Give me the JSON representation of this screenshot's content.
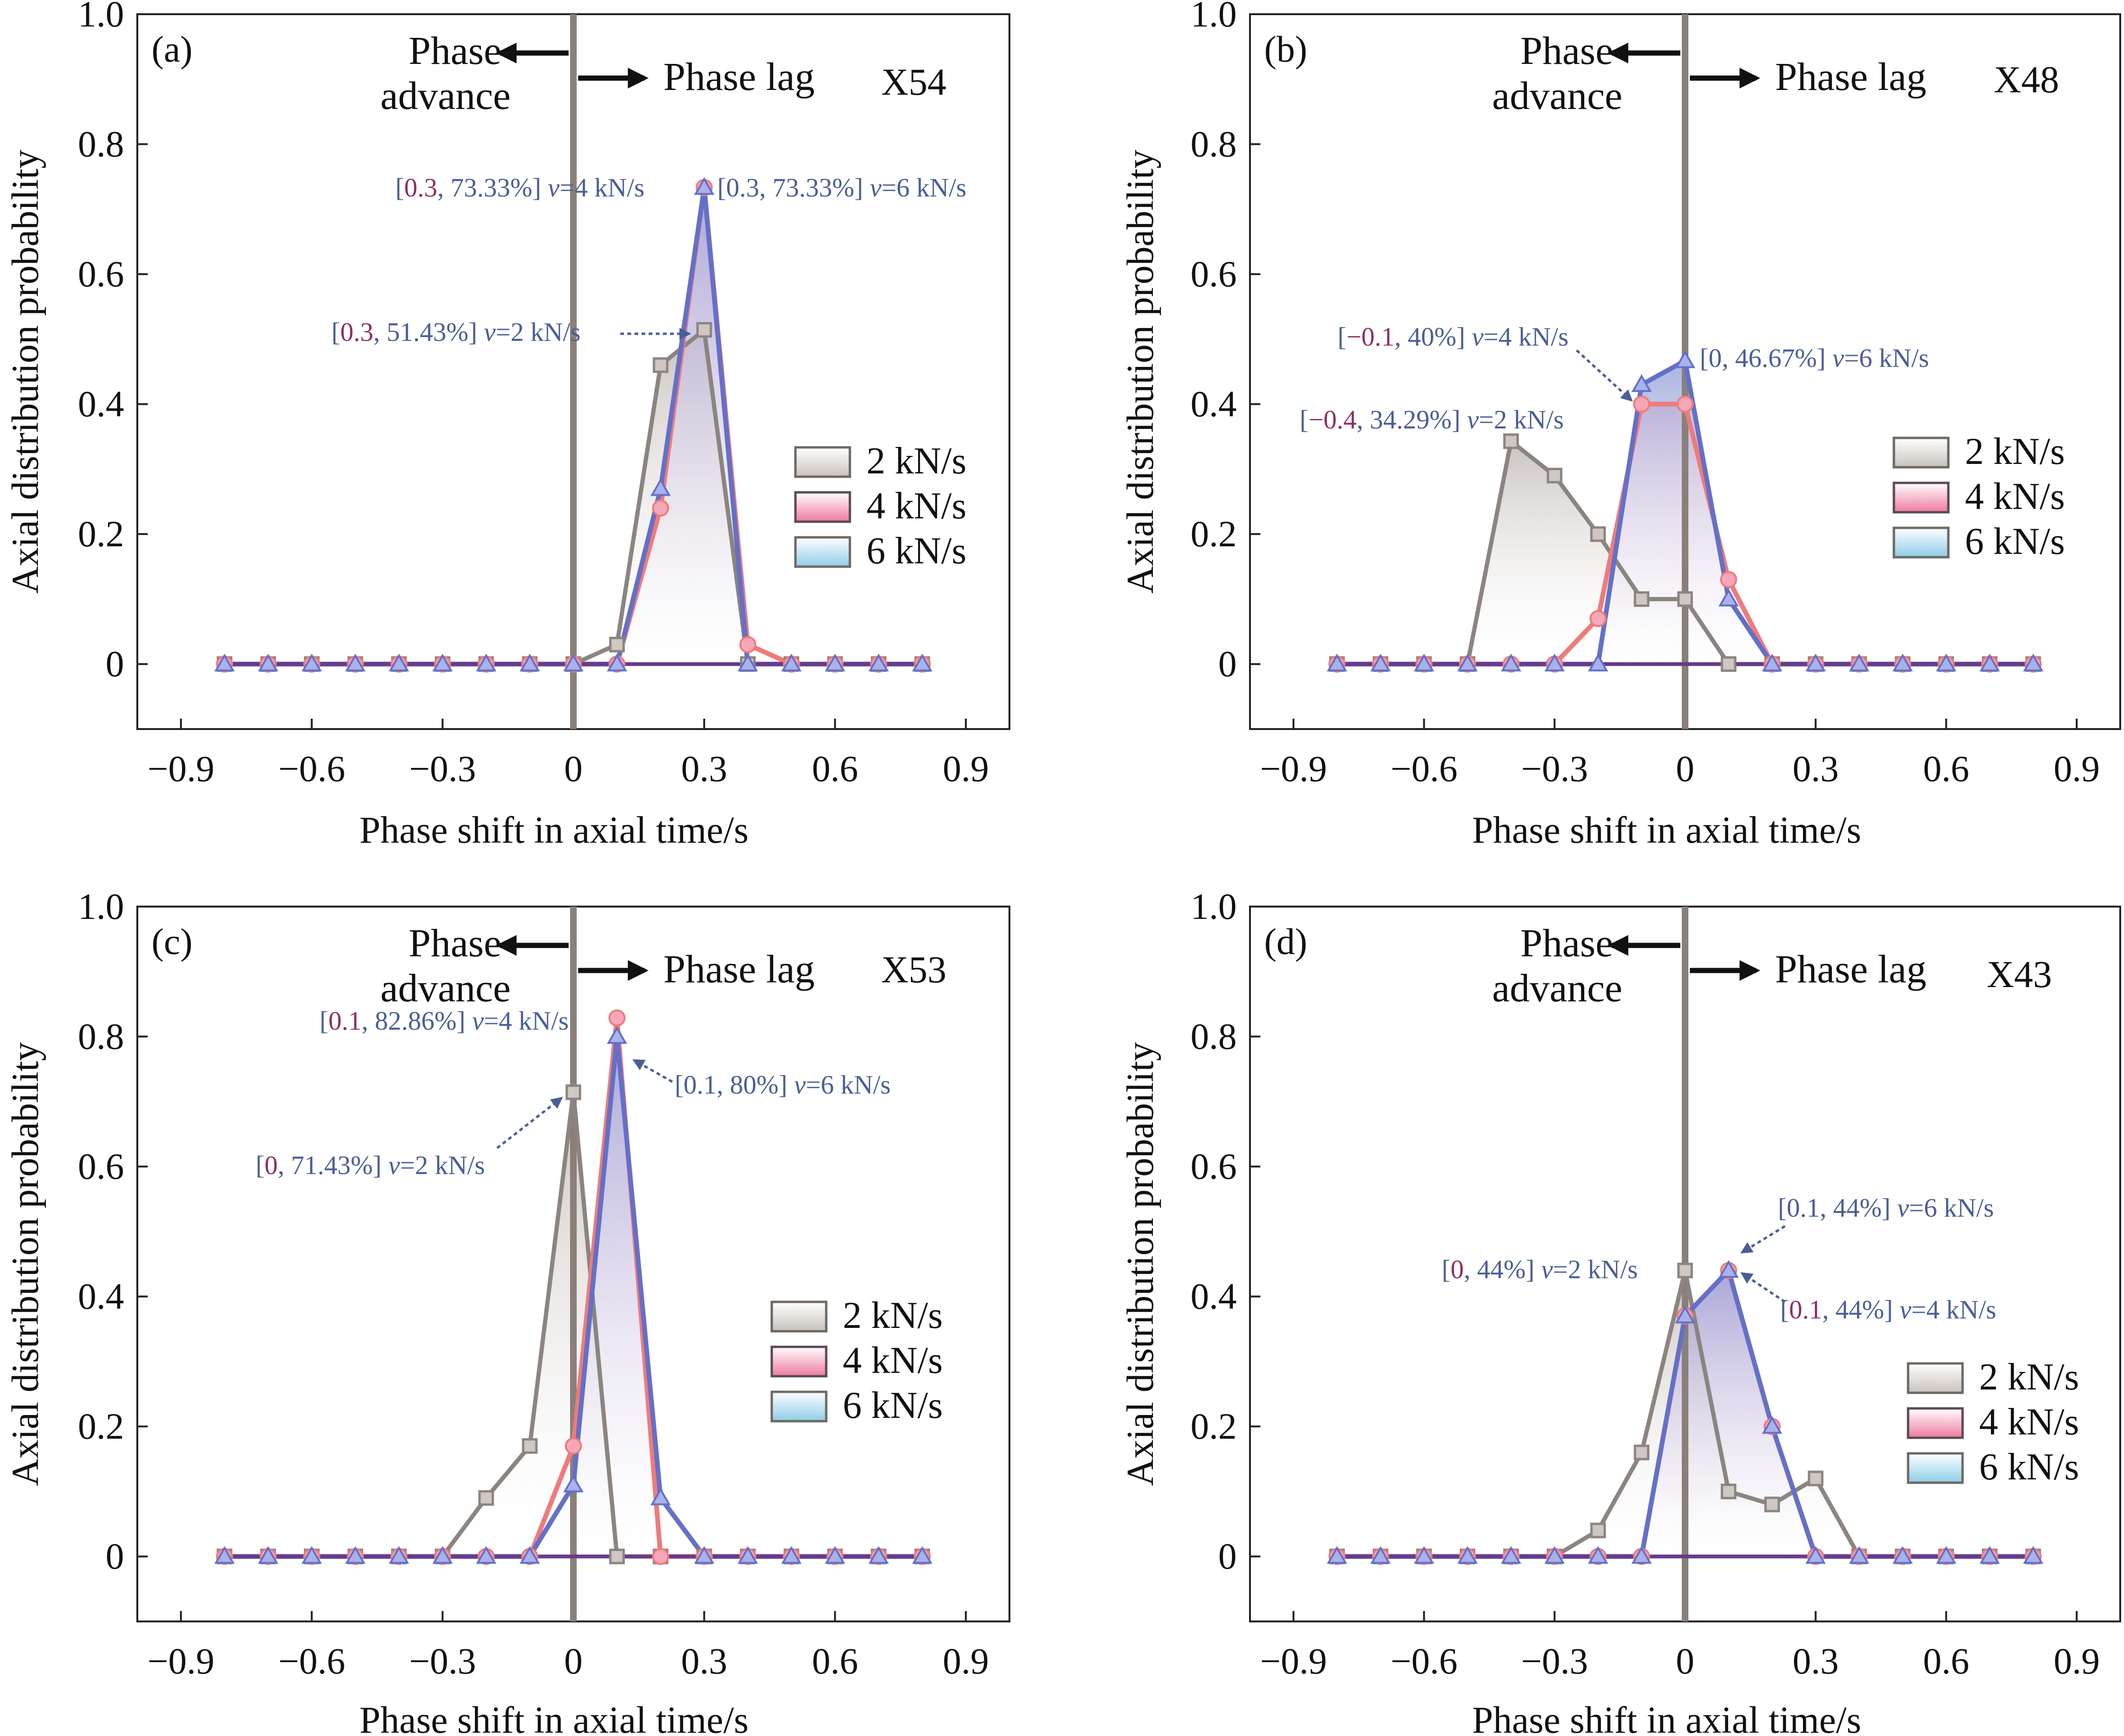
{
  "colors": {
    "s2": "#8c8480",
    "s4": "#f07a7a",
    "s6": "#6470c8",
    "baseline": "#6a3a88",
    "zero_line": "#8a807a",
    "annotation": "#4a5e98",
    "annotation_highlight": "#8e2f62"
  },
  "common": {
    "xlabel": "Phase shift in axial time/s",
    "ylabel": "Axial distribution probability",
    "phase_advance_line1": "Phase",
    "phase_advance_line2": "advance",
    "phase_lag": "Phase lag",
    "xticks": [
      -0.9,
      -0.6,
      -0.3,
      0,
      0.3,
      0.6,
      0.9
    ],
    "xtick_labels": [
      "−0.9",
      "−0.6",
      "−0.3",
      "0",
      "0.3",
      "0.6",
      "0.9"
    ],
    "yticks": [
      0,
      0.2,
      0.4,
      0.6,
      0.8,
      1.0
    ],
    "ytick_labels": [
      "0",
      "0.2",
      "0.4",
      "0.6",
      "0.8",
      "1.0"
    ],
    "legend": [
      "2 kN/s",
      "4 kN/s",
      "6 kN/s"
    ]
  },
  "chart_data": [
    {
      "type": "line",
      "panel": "(a)",
      "specimen": "X54",
      "xlim": [
        -1.0,
        1.0
      ],
      "ylim": [
        -0.1,
        1.0
      ],
      "x": [
        -0.8,
        -0.7,
        -0.6,
        -0.5,
        -0.4,
        -0.3,
        -0.2,
        -0.1,
        0,
        0.1,
        0.2,
        0.3,
        0.4,
        0.5,
        0.6,
        0.7,
        0.8
      ],
      "series": [
        {
          "name": "2 kN/s",
          "values": [
            0,
            0,
            0,
            0,
            0,
            0,
            0,
            0,
            0,
            0.03,
            0.46,
            0.5143,
            0,
            0,
            0,
            0,
            0
          ]
        },
        {
          "name": "4 kN/s",
          "values": [
            0,
            0,
            0,
            0,
            0,
            0,
            0,
            0,
            0,
            0,
            0.24,
            0.7333,
            0.03,
            0,
            0,
            0,
            0
          ]
        },
        {
          "name": "6 kN/s",
          "values": [
            0,
            0,
            0,
            0,
            0,
            0,
            0,
            0,
            0,
            0,
            0.27,
            0.7333,
            0,
            0,
            0,
            0,
            0
          ]
        }
      ],
      "annotations": [
        {
          "parts": [
            "[",
            "0.3",
            ", 73.33%] ",
            "v",
            "=4 kN/s"
          ]
        },
        {
          "parts": [
            "[0.3, 73.33%] ",
            "v",
            "=6 kN/s"
          ]
        },
        {
          "parts": [
            "[",
            "0.3",
            ", 51.43%] ",
            "v",
            "=2 kN/s"
          ]
        }
      ]
    },
    {
      "type": "line",
      "panel": "(b)",
      "specimen": "X48",
      "xlim": [
        -1.0,
        1.0
      ],
      "ylim": [
        -0.1,
        1.0
      ],
      "x": [
        -0.8,
        -0.7,
        -0.6,
        -0.5,
        -0.4,
        -0.3,
        -0.2,
        -0.1,
        0,
        0.1,
        0.2,
        0.3,
        0.4,
        0.5,
        0.6,
        0.7,
        0.8
      ],
      "series": [
        {
          "name": "2 kN/s",
          "values": [
            0,
            0,
            0,
            0,
            0.3429,
            0.29,
            0.2,
            0.1,
            0.1,
            0,
            0,
            0,
            0,
            0,
            0,
            0,
            0
          ]
        },
        {
          "name": "4 kN/s",
          "values": [
            0,
            0,
            0,
            0,
            0,
            0,
            0.07,
            0.4,
            0.4,
            0.13,
            0,
            0,
            0,
            0,
            0,
            0,
            0
          ]
        },
        {
          "name": "6 kN/s",
          "values": [
            0,
            0,
            0,
            0,
            0,
            0,
            0,
            0.43,
            0.4667,
            0.1,
            0,
            0,
            0,
            0,
            0,
            0,
            0
          ]
        }
      ],
      "annotations": [
        {
          "parts": [
            "[",
            "−0.1",
            ", 40%] ",
            "v",
            "=4 kN/s"
          ]
        },
        {
          "parts": [
            "[0, 46.67%] ",
            "v",
            "=6 kN/s"
          ]
        },
        {
          "parts": [
            "[",
            "−0.4",
            ", 34.29%] ",
            "v",
            "=2 kN/s"
          ]
        }
      ]
    },
    {
      "type": "line",
      "panel": "(c)",
      "specimen": "X53",
      "xlim": [
        -1.0,
        1.0
      ],
      "ylim": [
        -0.1,
        1.0
      ],
      "x": [
        -0.8,
        -0.7,
        -0.6,
        -0.5,
        -0.4,
        -0.3,
        -0.2,
        -0.1,
        0,
        0.1,
        0.2,
        0.3,
        0.4,
        0.5,
        0.6,
        0.7,
        0.8
      ],
      "series": [
        {
          "name": "2 kN/s",
          "values": [
            0,
            0,
            0,
            0,
            0,
            0,
            0.09,
            0.17,
            0.7143,
            0,
            0,
            0,
            0,
            0,
            0,
            0,
            0
          ]
        },
        {
          "name": "4 kN/s",
          "values": [
            0,
            0,
            0,
            0,
            0,
            0,
            0,
            0,
            0.17,
            0.8286,
            0,
            0,
            0,
            0,
            0,
            0,
            0
          ]
        },
        {
          "name": "6 kN/s",
          "values": [
            0,
            0,
            0,
            0,
            0,
            0,
            0,
            0,
            0.11,
            0.8,
            0.09,
            0,
            0,
            0,
            0,
            0,
            0
          ]
        }
      ],
      "annotations": [
        {
          "parts": [
            "[",
            "0.1",
            ", 82.86%] ",
            "v",
            "=4 kN/s"
          ]
        },
        {
          "parts": [
            "[0.1, 80%] ",
            "v",
            "=6 kN/s"
          ]
        },
        {
          "parts": [
            "[",
            "0",
            ", 71.43%] ",
            "v",
            "=2 kN/s"
          ]
        }
      ]
    },
    {
      "type": "line",
      "panel": "(d)",
      "specimen": "X43",
      "xlim": [
        -1.0,
        1.0
      ],
      "ylim": [
        -0.1,
        1.0
      ],
      "x": [
        -0.8,
        -0.7,
        -0.6,
        -0.5,
        -0.4,
        -0.3,
        -0.2,
        -0.1,
        0,
        0.1,
        0.2,
        0.3,
        0.4,
        0.5,
        0.6,
        0.7,
        0.8
      ],
      "series": [
        {
          "name": "2 kN/s",
          "values": [
            0,
            0,
            0,
            0,
            0,
            0,
            0.04,
            0.16,
            0.44,
            0.1,
            0.08,
            0.12,
            0,
            0,
            0,
            0,
            0
          ]
        },
        {
          "name": "4 kN/s",
          "values": [
            0,
            0,
            0,
            0,
            0,
            0,
            0,
            0,
            0.37,
            0.44,
            0.2,
            0,
            0,
            0,
            0,
            0,
            0
          ]
        },
        {
          "name": "6 kN/s",
          "values": [
            0,
            0,
            0,
            0,
            0,
            0,
            0,
            0,
            0.37,
            0.44,
            0.2,
            0,
            0,
            0,
            0,
            0,
            0
          ]
        }
      ],
      "annotations": [
        {
          "parts": [
            "[0.1, 44%] ",
            "v",
            "=6 kN/s"
          ]
        },
        {
          "parts": [
            "[",
            "0",
            ", 44%] ",
            "v",
            "=2 kN/s"
          ]
        },
        {
          "parts": [
            "[",
            "0.1",
            ", 44%] ",
            "v",
            "=4 kN/s"
          ]
        }
      ]
    }
  ]
}
